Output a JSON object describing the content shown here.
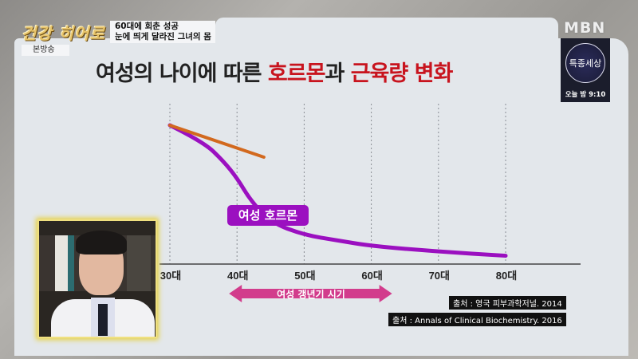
{
  "broadcast": {
    "show_logo": "건강 히어로",
    "headline_line1": "60대에 회춘 성공",
    "headline_line2": "눈에 띄게 달라진 그녀의 몸",
    "replay_badge": "본방송",
    "channel_logo": "MBN",
    "promo_title": "특종세상",
    "promo_time": "오늘 밤 9:10"
  },
  "chart_data": {
    "type": "line",
    "title_parts": [
      "여성의 나이에 따른 ",
      "호르몬",
      "과 ",
      "근육량 변화"
    ],
    "x_ticks": [
      "30대",
      "40대",
      "50대",
      "60대",
      "70대",
      "80대"
    ],
    "xlabel": "",
    "ylabel": "",
    "grid": "vertical dashed",
    "x_range": [
      30,
      80
    ],
    "series": [
      {
        "name": "여성 호르몬",
        "color": "#9b10c0",
        "x": [
          30,
          35,
          38,
          40,
          42,
          45,
          50,
          55,
          60,
          70,
          80
        ],
        "y": [
          100,
          88,
          74,
          62,
          46,
          30,
          21,
          17,
          13,
          9,
          6
        ]
      },
      {
        "color": "#d2691e",
        "x": [
          30,
          44
        ],
        "y": [
          100,
          77
        ]
      }
    ],
    "y_note_units": "relative",
    "annotation_range": {
      "label": "여성 갱년기 시기",
      "from": 40,
      "to": 60,
      "color": "#d23c8c"
    },
    "sources": [
      "출처 : 영국 피부과학저널. 2014",
      "출처 : Annals of Clinical Biochemistry. 2016"
    ]
  }
}
